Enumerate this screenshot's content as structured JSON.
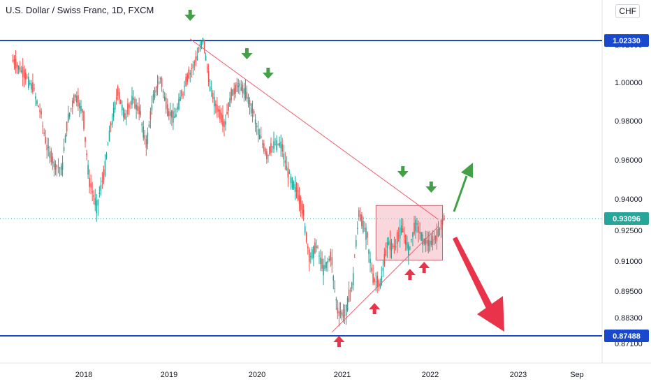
{
  "title": "U.S. Dollar / Swiss Franc, 1D, FXCM",
  "currency_button": "CHF",
  "colors": {
    "up": "#26a69a",
    "down": "#ef5350",
    "level": "#1848cc",
    "trend": "#f05e6f",
    "green_arrow": "#43a047",
    "red_arrow": "#e8334a",
    "zone": "#f4b7bf"
  },
  "chart_data": {
    "type": "candlestick",
    "title": "U.S. Dollar / Swiss Franc, 1D, FXCM",
    "x_ticks": [
      "2018",
      "2019",
      "2020",
      "2021",
      "2022",
      "2023",
      "Sep"
    ],
    "y_ticks": [
      "1.02000",
      "1.00000",
      "0.98000",
      "0.96000",
      "0.94000",
      "0.92500",
      "0.91000",
      "0.89500",
      "0.88300",
      "0.87100"
    ],
    "y_top_partial_label": "0",
    "ylim": [
      0.866,
      1.0415
    ],
    "price_labels": [
      {
        "text": "1.02330",
        "value": 1.0233,
        "color": "#1848cc"
      },
      {
        "text": "0.93096",
        "value": 0.93096,
        "color": "#26a69a"
      },
      {
        "text": "0.87488",
        "value": 0.87488,
        "color": "#1848cc"
      }
    ],
    "horizontal_levels": [
      1.0233,
      0.87488
    ],
    "descending_trendline": {
      "from": [
        "2019-04",
        1.0245
      ],
      "to": [
        "2022-03",
        0.9305
      ]
    },
    "ascending_trendline": {
      "from": [
        "2020-12",
        0.8765
      ],
      "to": [
        "2022-03",
        0.927
      ]
    },
    "consolidation_box": {
      "from": "2021-07",
      "to": "2022-03",
      "top": 0.937,
      "bottom": 0.9105
    },
    "series": [
      {
        "name": "USDCHF",
        "date": [
          "2017-03",
          "2017-04",
          "2017-05",
          "2017-06",
          "2017-07",
          "2017-08",
          "2017-09",
          "2017-10",
          "2017-11",
          "2017-12",
          "2018-01",
          "2018-02",
          "2018-03",
          "2018-04",
          "2018-05",
          "2018-06",
          "2018-07",
          "2018-08",
          "2018-09",
          "2018-10",
          "2018-11",
          "2018-12",
          "2019-01",
          "2019-02",
          "2019-03",
          "2019-04",
          "2019-05",
          "2019-06",
          "2019-07",
          "2019-08",
          "2019-09",
          "2019-10",
          "2019-11",
          "2019-12",
          "2020-01",
          "2020-02",
          "2020-03",
          "2020-04",
          "2020-05",
          "2020-06",
          "2020-07",
          "2020-08",
          "2020-09",
          "2020-10",
          "2020-11",
          "2020-12",
          "2021-01",
          "2021-02",
          "2021-03",
          "2021-04",
          "2021-05",
          "2021-06",
          "2021-07",
          "2021-08",
          "2021-09",
          "2021-10",
          "2021-11",
          "2021-12",
          "2022-01",
          "2022-02",
          "2022-03"
        ],
        "close": [
          1.008,
          1.003,
          0.997,
          0.985,
          0.966,
          0.958,
          0.955,
          0.982,
          0.993,
          0.985,
          0.948,
          0.937,
          0.952,
          0.978,
          0.995,
          0.982,
          0.991,
          0.985,
          0.968,
          0.992,
          1.002,
          0.985,
          0.982,
          0.994,
          1.004,
          1.012,
          1.024,
          0.997,
          0.986,
          0.978,
          0.993,
          0.998,
          0.995,
          0.985,
          0.972,
          0.962,
          0.968,
          0.968,
          0.953,
          0.946,
          0.935,
          0.912,
          0.917,
          0.906,
          0.912,
          0.886,
          0.884,
          0.898,
          0.933,
          0.924,
          0.901,
          0.898,
          0.918,
          0.917,
          0.926,
          0.916,
          0.928,
          0.921,
          0.918,
          0.922,
          0.931
        ]
      }
    ],
    "annotations": [
      {
        "type": "green_down_arrow",
        "date": "2019-04"
      },
      {
        "type": "green_down_arrow",
        "date": "2019-12"
      },
      {
        "type": "green_down_arrow",
        "date": "2020-03"
      },
      {
        "type": "green_down_arrow",
        "date": "2021-10"
      },
      {
        "type": "green_down_arrow",
        "date": "2022-02"
      },
      {
        "type": "red_up_arrow",
        "date": "2021-01"
      },
      {
        "type": "red_up_arrow",
        "date": "2021-06"
      },
      {
        "type": "red_up_arrow",
        "date": "2021-11"
      },
      {
        "type": "red_up_arrow",
        "date": "2022-01"
      },
      {
        "type": "green_scenario_arrow_up",
        "from": "2022-05",
        "to": "2022-10"
      },
      {
        "type": "red_scenario_arrow_down",
        "from": "2022-05",
        "to": "2023-01"
      }
    ]
  }
}
